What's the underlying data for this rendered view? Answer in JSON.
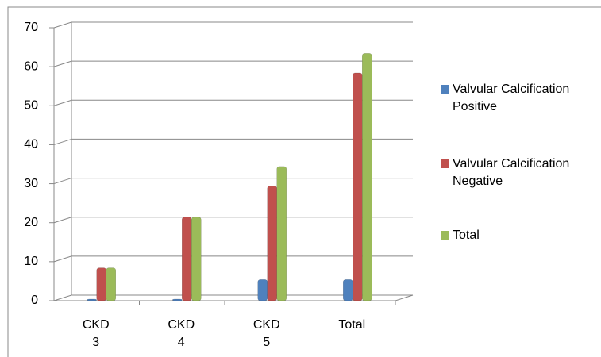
{
  "chart_data": {
    "type": "bar",
    "categories": [
      "CKD 3",
      "CKD 4",
      "CKD 5",
      "Total"
    ],
    "series": [
      {
        "name": "Valvular Calcification Positive",
        "color": "#4f81bd",
        "values": [
          0,
          0,
          5,
          5
        ]
      },
      {
        "name": "Valvular Calcification Negative",
        "color": "#c0504d",
        "values": [
          8,
          21,
          29,
          58
        ]
      },
      {
        "name": "Total",
        "color": "#9bbb59",
        "values": [
          8,
          21,
          34,
          63
        ]
      }
    ],
    "ylim": [
      0,
      70
    ],
    "yticks": [
      0,
      10,
      20,
      30,
      40,
      50,
      60,
      70
    ],
    "grid": true,
    "legend": "right"
  }
}
